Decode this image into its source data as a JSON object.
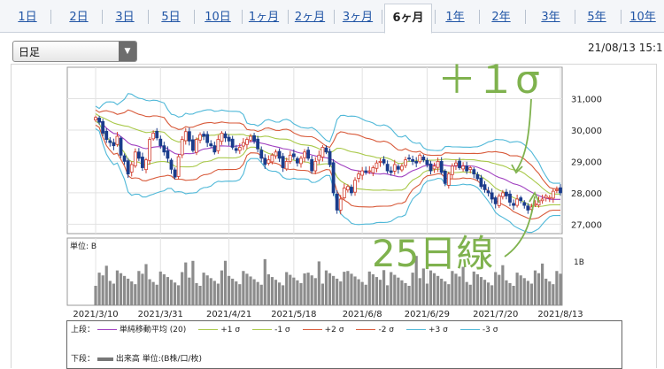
{
  "tabs": [
    {
      "label": "1日",
      "active": false
    },
    {
      "label": "2日",
      "active": false
    },
    {
      "label": "3日",
      "active": false
    },
    {
      "label": "5日",
      "active": false
    },
    {
      "label": "10日",
      "active": false
    },
    {
      "label": "1ヶ月",
      "active": false
    },
    {
      "label": "2ヶ月",
      "active": false
    },
    {
      "label": "3ヶ月",
      "active": false
    },
    {
      "label": "6ヶ月",
      "active": true
    },
    {
      "label": "1年",
      "active": false
    },
    {
      "label": "2年",
      "active": false
    },
    {
      "label": "3年",
      "active": false
    },
    {
      "label": "5年",
      "active": false
    },
    {
      "label": "10年",
      "active": false
    }
  ],
  "period_select": {
    "value": "日足"
  },
  "timestamp": "21/08/13 15:1",
  "annotations": {
    "plus_one_sigma": "＋１σ",
    "ma25": "25日線"
  },
  "colors": {
    "ma": "#a040c0",
    "plus1": "#a9c94a",
    "minus1": "#a9c94a",
    "plus2": "#d85a3a",
    "minus2": "#d85a3a",
    "plus3": "#4fb8d8",
    "minus3": "#4fb8d8",
    "candle_up": "#d23c2c",
    "candle_down": "#1a3c8c",
    "volume": "#8c8c8c",
    "annotation": "#7fb24e"
  },
  "legend": {
    "upper_label": "上段：",
    "lower_label": "下段：",
    "items": [
      {
        "label": "単純移動平均 (20)",
        "color": "#a040c0"
      },
      {
        "label": "+1 σ",
        "color": "#a9c94a"
      },
      {
        "label": "-1 σ",
        "color": "#a9c94a"
      },
      {
        "label": "+2 σ",
        "color": "#d85a3a"
      },
      {
        "label": "-2 σ",
        "color": "#d85a3a"
      },
      {
        "label": "+3 σ",
        "color": "#4fb8d8"
      },
      {
        "label": "-3 σ",
        "color": "#4fb8d8"
      }
    ],
    "volume_label": "出来高 単位:(B株/口/枚)"
  },
  "chart_data": [
    {
      "type": "candlestick",
      "y_ticks": [
        "31,000",
        "30,000",
        "29,000",
        "28,000",
        "27,000"
      ],
      "ylim": [
        26700,
        32000
      ],
      "grid": true,
      "x_ticks": [
        "2021/3/10",
        "2021/3/31",
        "2021/4/21",
        "2021/5/18",
        "2021/6/8",
        "2021/6/29",
        "2021/7/20",
        "2021/8/13"
      ],
      "close": [
        30400,
        30250,
        29900,
        29700,
        29600,
        29500,
        29800,
        29200,
        29000,
        28600,
        28900,
        29300,
        29100,
        28800,
        29050,
        29700,
        29900,
        29750,
        29500,
        29300,
        29100,
        28750,
        28500,
        29150,
        29700,
        29950,
        29650,
        29350,
        29700,
        29850,
        29800,
        29600,
        29500,
        29300,
        29700,
        29900,
        29750,
        29650,
        29450,
        29350,
        29450,
        29600,
        29700,
        29800,
        29650,
        29400,
        29100,
        28900,
        29050,
        29200,
        29300,
        29100,
        28800,
        29000,
        29200,
        29150,
        28950,
        29100,
        29300,
        29100,
        28700,
        29000,
        29200,
        29450,
        29300,
        28900,
        28000,
        27450,
        27800,
        28150,
        28200,
        28000,
        28400,
        28600,
        28700,
        28650,
        28700,
        28800,
        28950,
        29000,
        28950,
        28700,
        28650,
        28900,
        28750,
        28850,
        29050,
        29100,
        29000,
        28950,
        29200,
        29050,
        28900,
        28700,
        28850,
        29000,
        28650,
        28300,
        28600,
        28850,
        28950,
        28800,
        28850,
        28700,
        28800,
        28600,
        28450,
        28200,
        28100,
        28000,
        27800,
        27650,
        27900,
        28000,
        27900,
        27700,
        27600,
        27800,
        27750,
        27600,
        27450,
        27550,
        27650,
        27750,
        27800,
        27900,
        27850,
        28050,
        28100,
        28000
      ]
    },
    {
      "type": "bar",
      "unit_label": "単位: B",
      "y_ticks": [
        "1B"
      ]
    }
  ]
}
